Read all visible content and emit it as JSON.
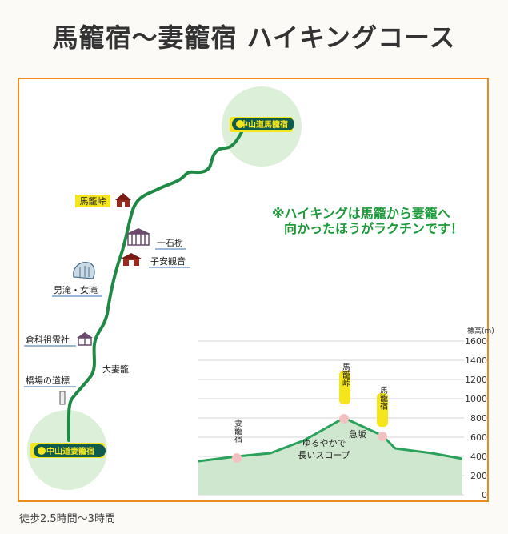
{
  "title": "馬籠宿〜妻籠宿 ハイキングコース",
  "footer": "徒歩2.5時間〜3時間",
  "map": {
    "start_label": "中山道馬籠宿",
    "end_label": "中山道妻籠宿",
    "note_line1": "※ハイキングは馬籠から妻籠へ",
    "note_line2": "向かったほうがラクチンです！",
    "spots": {
      "magome_pass": "馬籠峠",
      "ichikoku": "一石栃",
      "koyasu": "子安観音",
      "falls": "男滝・女滝",
      "kurashina": "倉科祖霊社",
      "ootsumago": "大妻籠",
      "hashiba": "橋場の道標"
    },
    "colors": {
      "route": "#1e8a46",
      "highlight": "#f5e51c",
      "circle": "#dcefd8",
      "note": "#1b9a3a",
      "frame": "#ee8a1e"
    }
  },
  "profile": {
    "axis_unit": "標高(m)",
    "ticks": [
      "1600",
      "1400",
      "1200",
      "1000",
      "800",
      "600",
      "400",
      "200",
      "0"
    ],
    "tsumago": "妻籠宿",
    "pass": "馬籠峠",
    "magome": "馬籠宿",
    "gentle_line1": "ゆるやかで",
    "gentle_line2": "長いスロープ",
    "steep": "急坂"
  }
}
